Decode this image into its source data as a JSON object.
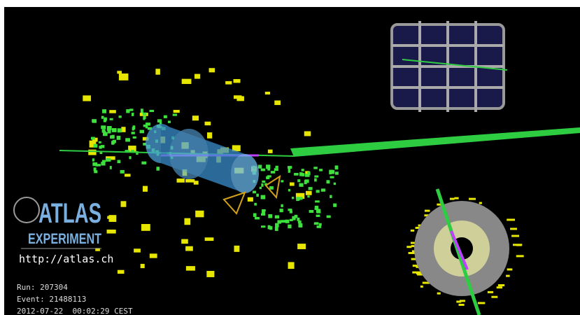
{
  "logo": {
    "name": "ATLAS",
    "subtitle": "EXPERIMENT",
    "url": "http://atlas.ch"
  },
  "event_info": {
    "run": "Run: 207304",
    "event": "Event: 21488113",
    "timestamp": "2012-07-22  00:02:29 CEST"
  }
}
